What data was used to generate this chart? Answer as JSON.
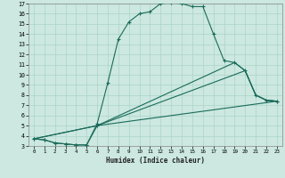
{
  "xlabel": "Humidex (Indice chaleur)",
  "bg_color": "#cce8e0",
  "plot_bg_color": "#cce8e0",
  "grid_color": "#aad4c8",
  "line_color": "#1a6b5a",
  "xlim": [
    -0.5,
    23.5
  ],
  "ylim": [
    3,
    17
  ],
  "xticks": [
    0,
    1,
    2,
    3,
    4,
    5,
    6,
    7,
    8,
    9,
    10,
    11,
    12,
    13,
    14,
    15,
    16,
    17,
    18,
    19,
    20,
    21,
    22,
    23
  ],
  "yticks": [
    3,
    4,
    5,
    6,
    7,
    8,
    9,
    10,
    11,
    12,
    13,
    14,
    15,
    16,
    17
  ],
  "curve1_x": [
    0,
    1,
    2,
    3,
    4,
    5,
    6,
    7,
    8,
    9,
    10,
    11,
    12,
    13,
    14,
    15,
    16,
    17,
    18,
    19,
    20,
    21,
    22,
    23
  ],
  "curve1_y": [
    3.7,
    3.6,
    3.3,
    3.2,
    3.1,
    3.1,
    5.2,
    9.2,
    13.5,
    15.2,
    16.0,
    16.2,
    17.0,
    17.1,
    17.0,
    16.7,
    16.7,
    14.0,
    11.4,
    11.2,
    10.4,
    8.0,
    7.5,
    7.4
  ],
  "curve2_x": [
    0,
    1,
    2,
    3,
    4,
    5,
    6,
    23
  ],
  "curve2_y": [
    3.7,
    3.6,
    3.3,
    3.2,
    3.1,
    3.1,
    5.0,
    7.4
  ],
  "curve3_x": [
    0,
    6,
    20,
    21,
    22,
    23
  ],
  "curve3_y": [
    3.7,
    5.0,
    10.4,
    8.0,
    7.5,
    7.4
  ],
  "curve4_x": [
    0,
    6,
    19,
    20,
    21,
    22,
    23
  ],
  "curve4_y": [
    3.7,
    5.0,
    11.2,
    10.4,
    8.0,
    7.5,
    7.4
  ]
}
